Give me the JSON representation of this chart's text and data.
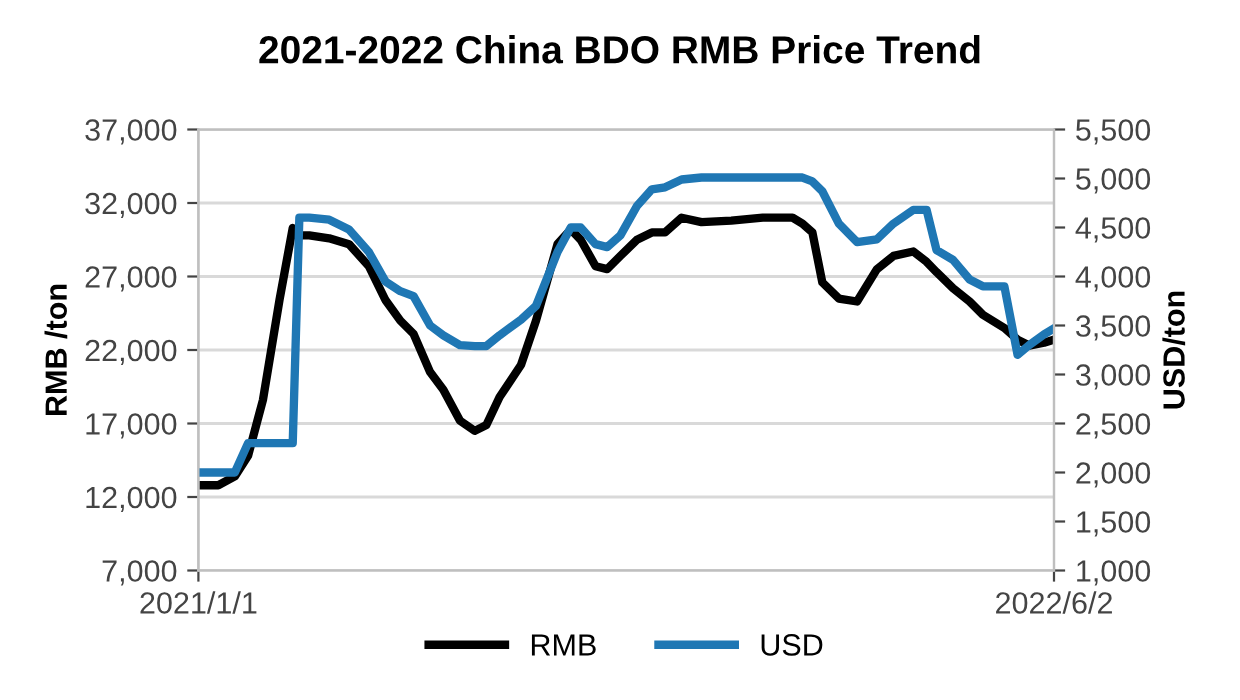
{
  "chart_data": {
    "type": "line",
    "title": "2021-2022 China BDO RMB Price Trend",
    "ylabel": "RMB /ton",
    "y2label": "USD/ton",
    "x": [
      "2021-01-01",
      "2021-01-13",
      "2021-01-23",
      "2021-01-31",
      "2021-02-09",
      "2021-02-19",
      "2021-02-27",
      "2021-03-03",
      "2021-03-09",
      "2021-03-21",
      "2021-04-02",
      "2021-04-14",
      "2021-04-24",
      "2021-05-03",
      "2021-05-11",
      "2021-05-21",
      "2021-05-29",
      "2021-06-08",
      "2021-06-17",
      "2021-06-24",
      "2021-07-02",
      "2021-07-15",
      "2021-07-24",
      "2021-08-06",
      "2021-08-14",
      "2021-08-20",
      "2021-08-29",
      "2021-09-05",
      "2021-09-13",
      "2021-09-23",
      "2021-10-02",
      "2021-10-10",
      "2021-10-20",
      "2021-11-01",
      "2021-11-19",
      "2021-12-08",
      "2021-12-26",
      "2022-01-01",
      "2022-01-07",
      "2022-01-13",
      "2022-01-23",
      "2022-02-03",
      "2022-02-15",
      "2022-02-25",
      "2022-03-09",
      "2022-03-17",
      "2022-03-23",
      "2022-04-02",
      "2022-04-12",
      "2022-04-20",
      "2022-05-03",
      "2022-05-11",
      "2022-05-18",
      "2022-05-27",
      "2022-06-02"
    ],
    "series": [
      {
        "name": "RMB",
        "color": "#000000",
        "values": [
          12800,
          12800,
          13400,
          14800,
          18600,
          25400,
          30300,
          29800,
          29800,
          29600,
          29200,
          27700,
          25400,
          24000,
          23100,
          20500,
          19300,
          17200,
          16500,
          16900,
          18800,
          21000,
          24000,
          29200,
          30200,
          29500,
          27700,
          27500,
          28400,
          29500,
          30000,
          30000,
          31000,
          30700,
          30800,
          31000,
          31000,
          30600,
          30000,
          26600,
          25500,
          25300,
          27500,
          28400,
          28700,
          28000,
          27300,
          26200,
          25300,
          24400,
          23500,
          22700,
          22300,
          22500,
          22700
        ]
      },
      {
        "name": "USD",
        "color": "#1f77b4",
        "axis": "y2",
        "values": [
          2000,
          2000,
          2000,
          2300,
          2300,
          2300,
          2300,
          4600,
          4600,
          4580,
          4480,
          4250,
          3950,
          3850,
          3800,
          3500,
          3400,
          3300,
          3290,
          3290,
          3400,
          3560,
          3700,
          4250,
          4500,
          4500,
          4330,
          4300,
          4420,
          4720,
          4890,
          4910,
          4990,
          5010,
          5010,
          5010,
          5010,
          5010,
          4970,
          4870,
          4540,
          4350,
          4380,
          4540,
          4680,
          4680,
          4270,
          4170,
          3970,
          3900,
          3900,
          3200,
          3300,
          3410,
          3470
        ]
      }
    ],
    "xlim": [
      "2021-01-01",
      "2022-06-02"
    ],
    "xticks": [
      {
        "value": "2021-01-01",
        "label": "2021/1/1"
      },
      {
        "value": "2022-06-02",
        "label": "2022/6/2"
      }
    ],
    "ylim": [
      7000,
      37000
    ],
    "yticks": [
      {
        "value": 7000,
        "label": "7,000"
      },
      {
        "value": 12000,
        "label": "12,000"
      },
      {
        "value": 17000,
        "label": "17,000"
      },
      {
        "value": 22000,
        "label": "22,000"
      },
      {
        "value": 27000,
        "label": "27,000"
      },
      {
        "value": 32000,
        "label": "32,000"
      },
      {
        "value": 37000,
        "label": "37,000"
      }
    ],
    "y2lim": [
      1000,
      5500
    ],
    "y2ticks": [
      {
        "value": 1000,
        "label": "1,000"
      },
      {
        "value": 1500,
        "label": "1,500"
      },
      {
        "value": 2000,
        "label": "2,000"
      },
      {
        "value": 2500,
        "label": "2,500"
      },
      {
        "value": 3000,
        "label": "3,000"
      },
      {
        "value": 3500,
        "label": "3,500"
      },
      {
        "value": 4000,
        "label": "4,000"
      },
      {
        "value": 4500,
        "label": "4,500"
      },
      {
        "value": 5000,
        "label": "5,000"
      },
      {
        "value": 5500,
        "label": "5,500"
      }
    ],
    "grid": "y",
    "legend": "bottom",
    "marker": "none",
    "line_style": "solid"
  }
}
